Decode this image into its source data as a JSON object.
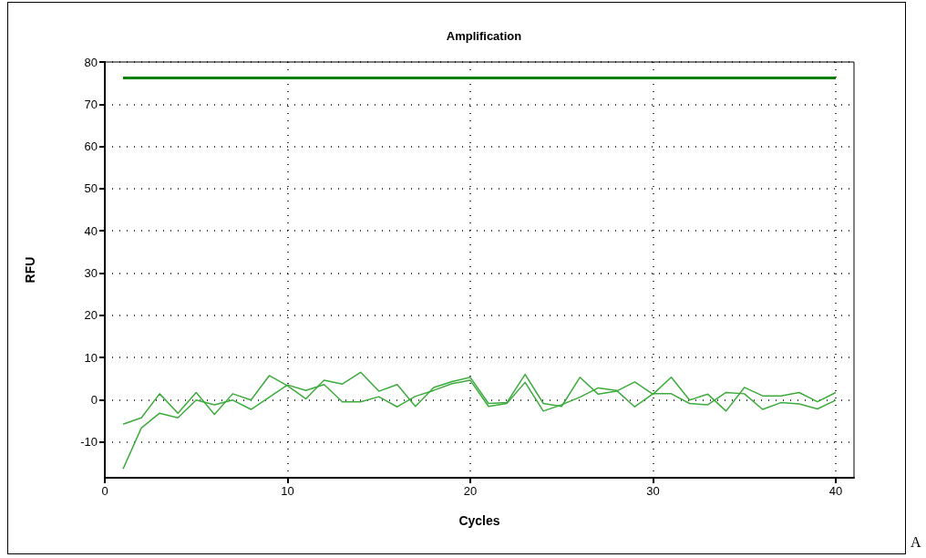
{
  "chart_data": {
    "type": "line",
    "title": "Amplification",
    "xlabel": "Cycles",
    "ylabel": "RFU",
    "x": [
      1,
      2,
      3,
      4,
      5,
      6,
      7,
      8,
      9,
      10,
      11,
      12,
      13,
      14,
      15,
      16,
      17,
      18,
      19,
      20,
      21,
      22,
      23,
      24,
      25,
      26,
      27,
      28,
      29,
      30,
      31,
      32,
      33,
      34,
      35,
      36,
      37,
      38,
      39,
      40
    ],
    "series": [
      {
        "color": "#008000",
        "values": [
          76.2,
          76.2,
          76.2,
          76.2,
          76.2,
          76.2,
          76.2,
          76.2,
          76.2,
          76.2,
          76.2,
          76.2,
          76.2,
          76.2,
          76.2,
          76.2,
          76.2,
          76.2,
          76.2,
          76.2,
          76.2,
          76.2,
          76.2,
          76.2,
          76.2,
          76.2,
          76.2,
          76.2,
          76.2,
          76.2,
          76.2,
          76.2,
          76.2,
          76.2,
          76.2,
          76.2,
          76.2,
          76.2,
          76.2,
          76.2
        ]
      },
      {
        "color": "#3cab3c",
        "values": [
          -5.8,
          -4.3,
          1.4,
          -3.2,
          1.7,
          -3.5,
          1.4,
          -0.1,
          5.7,
          3.3,
          0.2,
          4.6,
          3.7,
          6.5,
          2.0,
          3.6,
          -1.6,
          2.9,
          4.3,
          5.3,
          -0.9,
          -0.7,
          6.0,
          -0.9,
          -1.6,
          5.3,
          1.3,
          2.0,
          4.2,
          1.3,
          5.3,
          -0.1,
          1.3,
          -2.7,
          2.9,
          0.9,
          0.9,
          1.7,
          -0.5,
          1.7
        ]
      },
      {
        "color": "#3cab3c",
        "values": [
          -16.4,
          -6.7,
          -3.2,
          -4.3,
          -0.1,
          -1.2,
          -0.1,
          -2.3,
          0.6,
          3.5,
          2.2,
          3.6,
          -0.5,
          -0.5,
          0.7,
          -1.7,
          0.8,
          2.2,
          3.8,
          4.6,
          -1.6,
          -0.9,
          4.1,
          -2.7,
          -1.2,
          0.6,
          2.8,
          2.2,
          -1.7,
          1.4,
          1.4,
          -0.9,
          -1.2,
          1.7,
          1.4,
          -2.3,
          -0.7,
          -1.0,
          -2.2,
          -0.1
        ]
      }
    ],
    "xlim": [
      0,
      41
    ],
    "xticks": [
      0,
      10,
      20,
      30,
      40
    ],
    "ylim": [
      -18.5,
      80
    ],
    "yticks": [
      -10,
      0,
      10,
      20,
      30,
      40,
      50,
      60,
      70,
      80
    ],
    "grid": true,
    "marker": "none",
    "line_style": "solid",
    "annotations": [
      "A"
    ]
  }
}
